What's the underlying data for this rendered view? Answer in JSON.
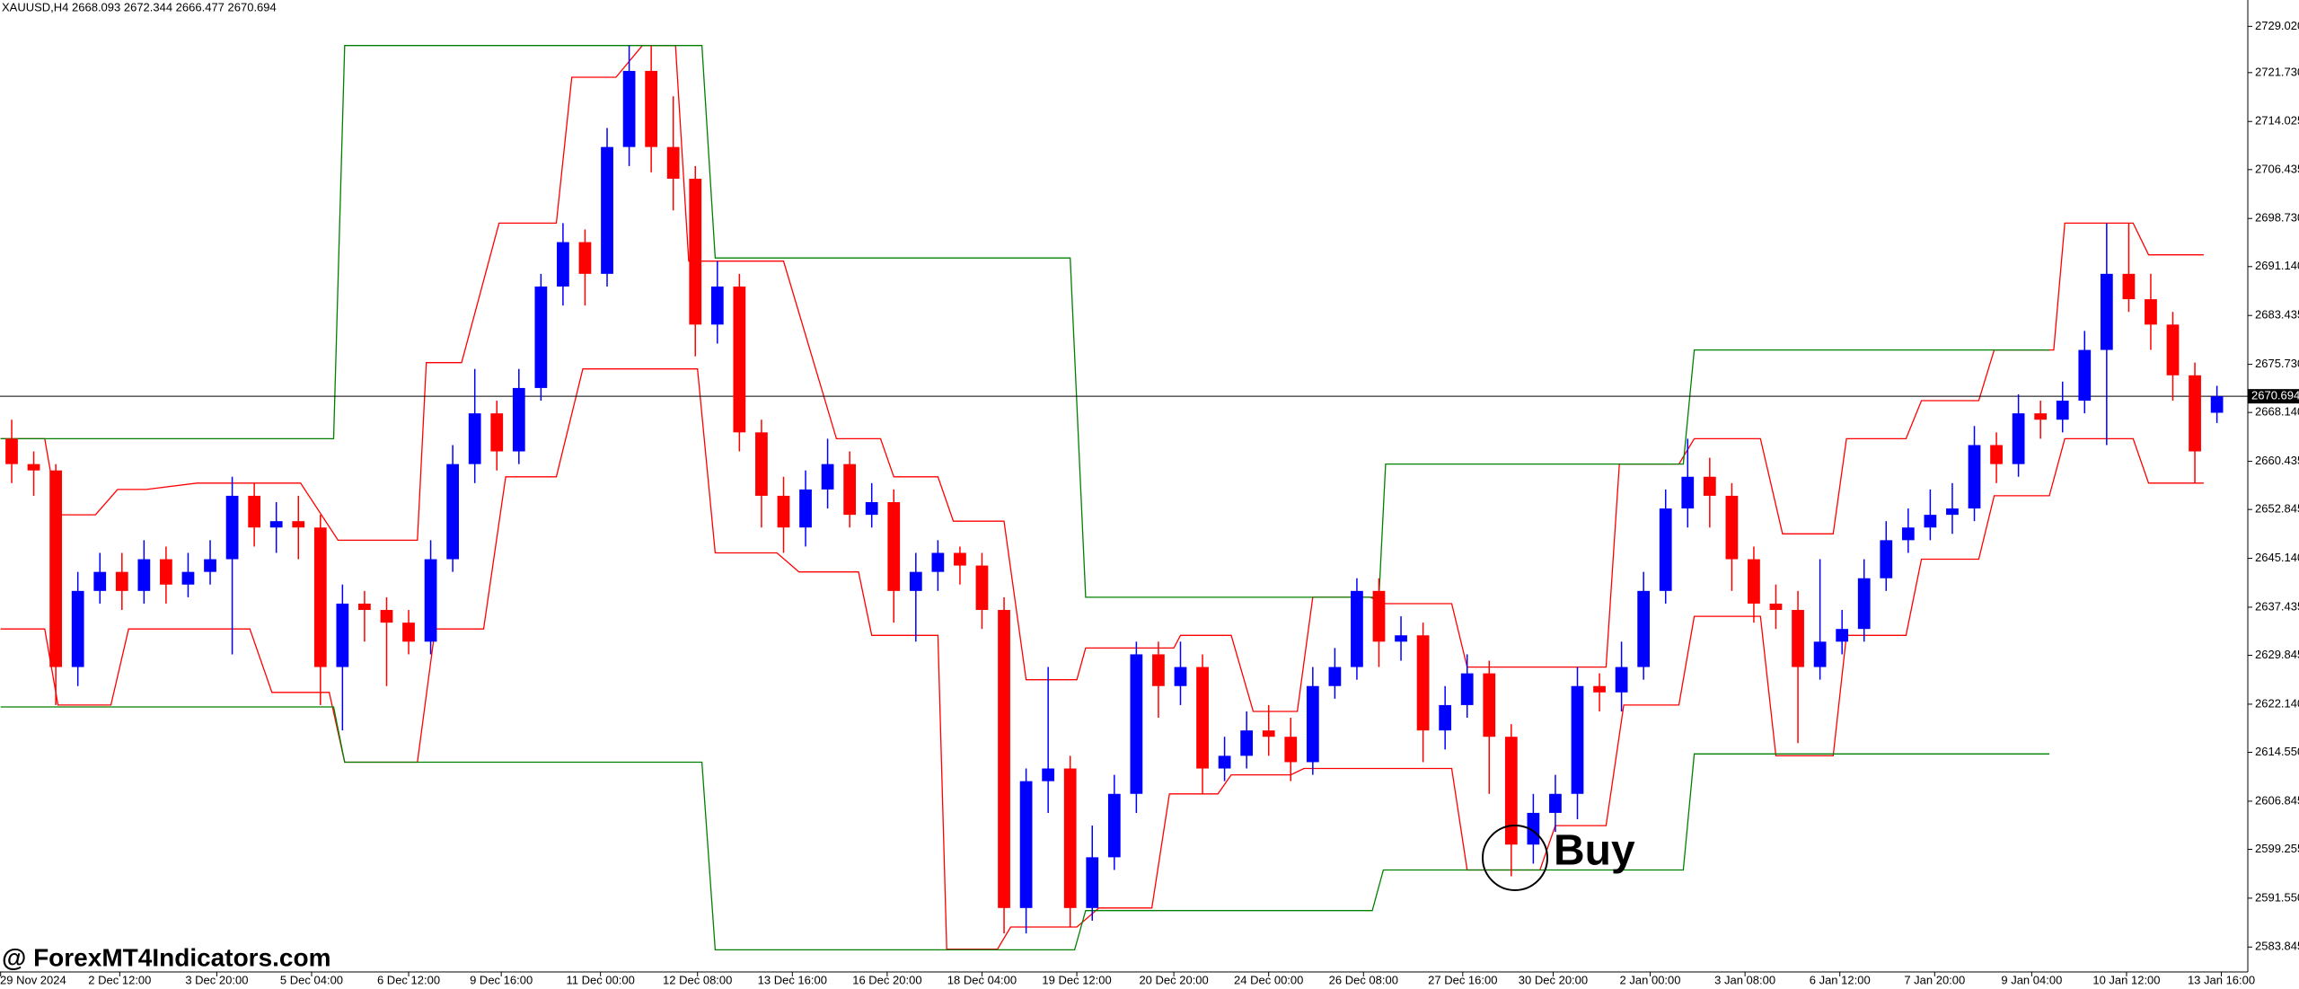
{
  "chart_data": {
    "type": "candlestick",
    "title": "XAUUSD,H4  2668.093 2672.344 2666.477 2670.694",
    "up_color": "#0000ff",
    "down_color": "#ff0000",
    "xlim": [
      -0.53,
      101.4
    ],
    "ylim": [
      2579.92,
      2733.18
    ],
    "open": [
      2664,
      2660,
      2659,
      2628,
      2640,
      2643,
      2640,
      2645,
      2641,
      2643,
      2645,
      2655,
      2650,
      2651,
      2650,
      2628,
      2638,
      2637,
      2635,
      2632,
      2645,
      2660,
      2668,
      2662,
      2672,
      2688,
      2695,
      2690,
      2710,
      2722,
      2710,
      2705,
      2682,
      2688,
      2665,
      2655,
      2650,
      2656,
      2660,
      2652,
      2654,
      2640,
      2643,
      2646,
      2644,
      2637,
      2590,
      2610,
      2612,
      2590,
      2598,
      2608,
      2630,
      2625,
      2628,
      2612,
      2614,
      2618,
      2617,
      2613,
      2625,
      2628,
      2640,
      2632,
      2633,
      2618,
      2622,
      2627,
      2617,
      2600,
      2605,
      2608,
      2625,
      2624,
      2628,
      2640,
      2653,
      2658,
      2655,
      2645,
      2638,
      2637,
      2628,
      2632,
      2634,
      2642,
      2648,
      2650,
      2652,
      2653,
      2663,
      2660,
      2668,
      2667,
      2670,
      2678,
      2690,
      2686,
      2682,
      2674,
      2668.093
    ],
    "high": [
      2667,
      2662,
      2660,
      2643,
      2646,
      2646,
      2648,
      2647,
      2646,
      2648,
      2658,
      2657,
      2654,
      2655,
      2652,
      2641,
      2640,
      2639,
      2637,
      2648,
      2663,
      2675,
      2670,
      2675,
      2690,
      2698,
      2697,
      2713,
      2726,
      2726,
      2718,
      2707,
      2692,
      2690,
      2667,
      2658,
      2659,
      2664,
      2662,
      2657,
      2656,
      2646,
      2648,
      2647,
      2646,
      2639,
      2612,
      2628,
      2614,
      2603,
      2611,
      2632,
      2632,
      2632,
      2630,
      2617,
      2621,
      2622,
      2620,
      2628,
      2631,
      2642,
      2642,
      2636,
      2635,
      2625,
      2630,
      2629,
      2619,
      2608,
      2611,
      2628,
      2627,
      2632,
      2643,
      2656,
      2664,
      2661,
      2657,
      2647,
      2641,
      2640,
      2645,
      2637,
      2645,
      2651,
      2653,
      2656,
      2657,
      2666,
      2665,
      2671,
      2670,
      2673,
      2681,
      2698,
      2698,
      2690,
      2684,
      2676,
      2672.344
    ],
    "low": [
      2657,
      2655,
      2622,
      2625,
      2638,
      2637,
      2638,
      2638,
      2639,
      2641,
      2630,
      2647,
      2646,
      2645,
      2622,
      2618,
      2632,
      2625,
      2630,
      2630,
      2643,
      2657,
      2659,
      2660,
      2670,
      2685,
      2685,
      2688,
      2707,
      2706,
      2700,
      2677,
      2679,
      2662,
      2650,
      2646,
      2647,
      2653,
      2650,
      2650,
      2635,
      2632,
      2640,
      2641,
      2634,
      2586,
      2586,
      2605,
      2587,
      2588,
      2596,
      2605,
      2620,
      2622,
      2608,
      2610,
      2612,
      2614,
      2610,
      2611,
      2623,
      2626,
      2628,
      2629,
      2613,
      2615,
      2620,
      2608,
      2595,
      2597,
      2602,
      2604,
      2621,
      2621,
      2626,
      2638,
      2650,
      2650,
      2640,
      2635,
      2634,
      2616,
      2626,
      2630,
      2632,
      2640,
      2646,
      2648,
      2649,
      2651,
      2657,
      2658,
      2664,
      2665,
      2668,
      2663,
      2684,
      2678,
      2670,
      2657,
      2666.477
    ],
    "close": [
      2660,
      2659,
      2628,
      2640,
      2643,
      2640,
      2645,
      2641,
      2643,
      2645,
      2655,
      2650,
      2651,
      2650,
      2628,
      2638,
      2637,
      2635,
      2632,
      2645,
      2660,
      2668,
      2662,
      2672,
      2688,
      2695,
      2690,
      2710,
      2722,
      2710,
      2705,
      2682,
      2688,
      2665,
      2655,
      2650,
      2656,
      2660,
      2652,
      2654,
      2640,
      2643,
      2646,
      2644,
      2637,
      2590,
      2610,
      2612,
      2590,
      2598,
      2608,
      2630,
      2625,
      2628,
      2612,
      2614,
      2618,
      2617,
      2613,
      2625,
      2628,
      2640,
      2632,
      2633,
      2618,
      2622,
      2627,
      2617,
      2600,
      2605,
      2608,
      2625,
      2624,
      2628,
      2640,
      2653,
      2658,
      2655,
      2645,
      2638,
      2637,
      2628,
      2632,
      2634,
      2642,
      2648,
      2650,
      2652,
      2653,
      2663,
      2660,
      2668,
      2667,
      2670,
      2678,
      2690,
      2686,
      2682,
      2674,
      2662,
      2670.694
    ],
    "lines": [
      {
        "color": "#ff0000",
        "x": [
          -0.5,
          1.5,
          2.1,
          3.8,
          4.8,
          6.1,
          8.4,
          13.1,
          14.8,
          18.4,
          18.8,
          20.4,
          22.1,
          24.7,
          25.4,
          27.4,
          28.6,
          30.1,
          30.7,
          35,
          37.4,
          39.4,
          40,
          42,
          42.7,
          45,
          46,
          48.3,
          48.7,
          52.7,
          53,
          55.3,
          56.3,
          58.3,
          59,
          61.6,
          62.3,
          65.3,
          66,
          72.3,
          72.9,
          75.6,
          76.3,
          79.3,
          80.3,
          82.6,
          83.2,
          85.9,
          86.6,
          89.2,
          89.9,
          92.6,
          93.1,
          96.2,
          96.9,
          99.4
        ],
        "values": [
          2664,
          2664,
          2652,
          2652,
          2656,
          2656,
          2657,
          2657,
          2648,
          2648,
          2676,
          2676,
          2698,
          2698,
          2721,
          2721,
          2726,
          2726,
          2692,
          2692,
          2664,
          2664,
          2658,
          2658,
          2651,
          2651,
          2626,
          2626,
          2631,
          2631,
          2633,
          2633,
          2621,
          2621,
          2639,
          2639,
          2638,
          2638,
          2628,
          2628,
          2660,
          2660,
          2664,
          2664,
          2649,
          2649,
          2664,
          2664,
          2670,
          2670,
          2678,
          2678,
          2698,
          2698,
          2693,
          2693
        ]
      },
      {
        "color": "#ff0000",
        "x": [
          -0.5,
          1.5,
          2.1,
          4.5,
          5.3,
          10.8,
          11.8,
          14.4,
          15.1,
          18.4,
          19.2,
          21.4,
          22.4,
          24.7,
          25.9,
          31.1,
          31.9,
          34.7,
          35.7,
          38.4,
          39,
          42,
          42.4,
          44.7,
          45.3,
          48.3,
          49.3,
          51.7,
          52.5,
          54.7,
          55.3,
          58,
          58.6,
          65.3,
          66,
          69.3,
          70,
          72.3,
          73.1,
          75.6,
          76.3,
          79.3,
          80,
          82.6,
          83.2,
          85.9,
          86.6,
          89.2,
          89.9,
          92.4,
          93.1,
          96.2,
          96.9,
          99.4
        ],
        "values": [
          2634,
          2634,
          2622,
          2622,
          2634,
          2634,
          2624,
          2624,
          2613,
          2613,
          2634,
          2634,
          2658,
          2658,
          2675,
          2675,
          2646,
          2646,
          2643,
          2643,
          2633,
          2633,
          2583.5,
          2583.5,
          2587,
          2587,
          2590,
          2590,
          2608,
          2608,
          2611,
          2611,
          2612,
          2612,
          2596,
          2596,
          2603,
          2603,
          2622,
          2622,
          2636,
          2636,
          2614,
          2614,
          2633,
          2633,
          2645,
          2645,
          2655,
          2655,
          2664,
          2664,
          2657,
          2657
        ]
      },
      {
        "color": "#008000",
        "x": [
          -0.5,
          14.6,
          15.1,
          31.3,
          31.9,
          48,
          48.7,
          62,
          62.3,
          75.8,
          76.3,
          92.4
        ],
        "values": [
          2664,
          2664,
          2726,
          2726,
          2692.5,
          2692.5,
          2639,
          2639,
          2660,
          2660,
          2678,
          2678
        ]
      },
      {
        "color": "#008000",
        "x": [
          -0.5,
          14.6,
          15.1,
          31.3,
          31.9,
          48.2,
          48.7,
          61.7,
          62.2,
          75.8,
          76.3,
          92.4
        ],
        "values": [
          2621.7,
          2621.7,
          2613,
          2613,
          2583.4,
          2583.4,
          2589.6,
          2589.6,
          2596,
          2596,
          2614.3,
          2614.3
        ]
      }
    ],
    "last_price": 2670.694,
    "yticks": [
      {
        "value": 2729.02,
        "label": "2729.020"
      },
      {
        "value": 2721.73,
        "label": "2721.730"
      },
      {
        "value": 2714.025,
        "label": "2714.025"
      },
      {
        "value": 2706.435,
        "label": "2706.435"
      },
      {
        "value": 2698.73,
        "label": "2698.730"
      },
      {
        "value": 2691.14,
        "label": "2691.140"
      },
      {
        "value": 2683.435,
        "label": "2683.435"
      },
      {
        "value": 2675.73,
        "label": "2675.730"
      },
      {
        "value": 2668.14,
        "label": "2668.140"
      },
      {
        "value": 2660.435,
        "label": "2660.435"
      },
      {
        "value": 2652.845,
        "label": "2652.845"
      },
      {
        "value": 2645.14,
        "label": "2645.140"
      },
      {
        "value": 2637.435,
        "label": "2637.435"
      },
      {
        "value": 2629.845,
        "label": "2629.845"
      },
      {
        "value": 2622.14,
        "label": "2622.140"
      },
      {
        "value": 2614.55,
        "label": "2614.550"
      },
      {
        "value": 2606.845,
        "label": "2606.845"
      },
      {
        "value": 2599.255,
        "label": "2599.255"
      },
      {
        "value": 2591.55,
        "label": "2591.550"
      },
      {
        "value": 2583.845,
        "label": "2583.845"
      }
    ],
    "xticks": [
      {
        "value": -0.5,
        "label": "29 Nov 2024"
      },
      {
        "value": 4.9,
        "label": "2 Dec 12:00"
      },
      {
        "value": 9.3,
        "label": "3 Dec 20:00"
      },
      {
        "value": 13.6,
        "label": "5 Dec 04:00"
      },
      {
        "value": 18,
        "label": "6 Dec 12:00"
      },
      {
        "value": 22.2,
        "label": "9 Dec 16:00"
      },
      {
        "value": 26.7,
        "label": "11 Dec 00:00"
      },
      {
        "value": 31.1,
        "label": "12 Dec 08:00"
      },
      {
        "value": 35.4,
        "label": "13 Dec 16:00"
      },
      {
        "value": 39.7,
        "label": "16 Dec 20:00"
      },
      {
        "value": 44,
        "label": "18 Dec 04:00"
      },
      {
        "value": 48.3,
        "label": "19 Dec 12:00"
      },
      {
        "value": 52.7,
        "label": "20 Dec 20:00"
      },
      {
        "value": 57,
        "label": "24 Dec 00:00"
      },
      {
        "value": 61.3,
        "label": "26 Dec 08:00"
      },
      {
        "value": 65.8,
        "label": "27 Dec 16:00"
      },
      {
        "value": 69.9,
        "label": "30 Dec 20:00"
      },
      {
        "value": 74.3,
        "label": "2 Jan 00:00"
      },
      {
        "value": 78.6,
        "label": "3 Jan 08:00"
      },
      {
        "value": 82.9,
        "label": "6 Jan 12:00"
      },
      {
        "value": 87.2,
        "label": "7 Jan 20:00"
      },
      {
        "value": 91.6,
        "label": "9 Jan 04:00"
      },
      {
        "value": 95.9,
        "label": "10 Jan 12:00"
      },
      {
        "value": 100.2,
        "label": "13 Jan 16:00"
      }
    ],
    "annotation": "Buy",
    "watermark": "@ ForexMT4Indicators.com"
  }
}
